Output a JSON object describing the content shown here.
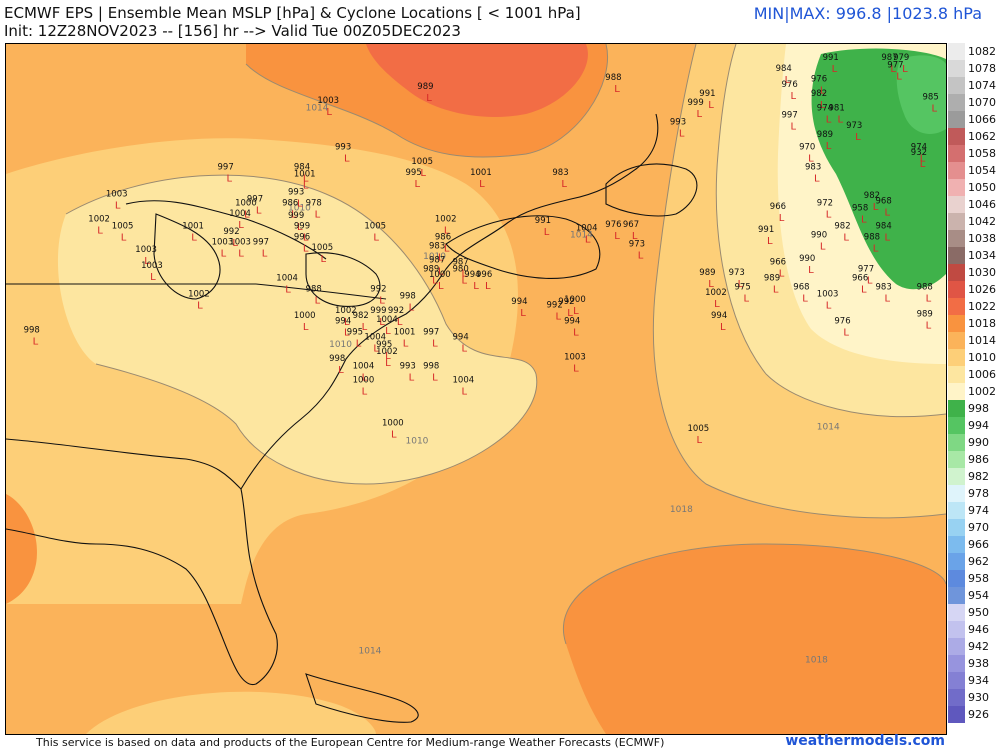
{
  "header": {
    "title_line1": "ECMWF EPS | Ensemble Mean MSLP [hPa] & Cyclone Locations [ < 1001 hPa]",
    "title_line2": "Init: 12Z28NOV2023 -- [156] hr --> Valid Tue 00Z05DEC2023",
    "minmax": "MIN|MAX: 996.8 |1023.8 hPa"
  },
  "footer": {
    "disclaimer": "This service is based on data and products of the European Centre for Medium-range Weather Forecasts (ECMWF)",
    "brand": "weathermodels.com"
  },
  "cyclone_marker": "L",
  "colors": {
    "land_lines": "#111111",
    "cyclone_marker": "#d62828",
    "isobar_line": "#9a8a70",
    "header_accent": "#1f55d6"
  },
  "isobar_labels": [
    {
      "text": "1014",
      "lon": -82.5,
      "lat": 49.8
    },
    {
      "text": "1010",
      "lon": -84.0,
      "lat": 44.2
    },
    {
      "text": "1010",
      "lon": -72.5,
      "lat": 41.5
    },
    {
      "text": "1010",
      "lon": -80.5,
      "lat": 36.6
    },
    {
      "text": "1010",
      "lon": -74.0,
      "lat": 31.2
    },
    {
      "text": "1014",
      "lon": -60.0,
      "lat": 42.7
    },
    {
      "text": "1014",
      "lon": -39.0,
      "lat": 32.0
    },
    {
      "text": "1018",
      "lon": -51.5,
      "lat": 27.4
    },
    {
      "text": "1014",
      "lon": -78.0,
      "lat": 19.5
    },
    {
      "text": "1018",
      "lon": -40.0,
      "lat": 19.0
    }
  ],
  "pressure_values": [
    {
      "text": "1003",
      "lon": -81.5,
      "lat": 50.2
    },
    {
      "text": "989",
      "lon": -73.0,
      "lat": 51.0
    },
    {
      "text": "988",
      "lon": -57.0,
      "lat": 51.5
    },
    {
      "text": "991",
      "lon": -49.0,
      "lat": 50.6
    },
    {
      "text": "999",
      "lon": -50.0,
      "lat": 50.1
    },
    {
      "text": "993",
      "lon": -51.5,
      "lat": 49.0
    },
    {
      "text": "993",
      "lon": -80.0,
      "lat": 47.6
    },
    {
      "text": "1005",
      "lon": -73.5,
      "lat": 46.8
    },
    {
      "text": "995",
      "lon": -74.0,
      "lat": 46.2
    },
    {
      "text": "1001",
      "lon": -68.5,
      "lat": 46.2
    },
    {
      "text": "983",
      "lon": -61.5,
      "lat": 46.2
    },
    {
      "text": "997",
      "lon": -90.0,
      "lat": 46.5
    },
    {
      "text": "984",
      "lon": -83.5,
      "lat": 46.5
    },
    {
      "text": "1001",
      "lon": -83.5,
      "lat": 46.1
    },
    {
      "text": "993",
      "lon": -84.0,
      "lat": 45.1
    },
    {
      "text": "997",
      "lon": -87.5,
      "lat": 44.7
    },
    {
      "text": "1000",
      "lon": -88.5,
      "lat": 44.5
    },
    {
      "text": "986",
      "lon": -84.5,
      "lat": 44.5
    },
    {
      "text": "978",
      "lon": -82.5,
      "lat": 44.5
    },
    {
      "text": "1004",
      "lon": -89.0,
      "lat": 43.9
    },
    {
      "text": "999",
      "lon": -84.0,
      "lat": 43.8
    },
    {
      "text": "992",
      "lon": -89.5,
      "lat": 42.9
    },
    {
      "text": "999",
      "lon": -83.5,
      "lat": 43.2
    },
    {
      "text": "996",
      "lon": -83.5,
      "lat": 42.6
    },
    {
      "text": "1001",
      "lon": -93.0,
      "lat": 43.2
    },
    {
      "text": "1003",
      "lon": -99.5,
      "lat": 45.0
    },
    {
      "text": "1002",
      "lon": -101.0,
      "lat": 43.6
    },
    {
      "text": "1005",
      "lon": -99.0,
      "lat": 43.2
    },
    {
      "text": "1003",
      "lon": -90.5,
      "lat": 42.3
    },
    {
      "text": "1003",
      "lon": -89.0,
      "lat": 42.3
    },
    {
      "text": "997",
      "lon": -87.0,
      "lat": 42.3
    },
    {
      "text": "1003",
      "lon": -97.0,
      "lat": 41.9
    },
    {
      "text": "1003",
      "lon": -96.5,
      "lat": 41.0
    },
    {
      "text": "1005",
      "lon": -82.0,
      "lat": 42.0
    },
    {
      "text": "1005",
      "lon": -77.5,
      "lat": 43.2
    },
    {
      "text": "1002",
      "lon": -71.5,
      "lat": 43.6
    },
    {
      "text": "986",
      "lon": -71.5,
      "lat": 42.6
    },
    {
      "text": "983",
      "lon": -72.0,
      "lat": 42.1
    },
    {
      "text": "987",
      "lon": -72.0,
      "lat": 41.3
    },
    {
      "text": "987",
      "lon": -70.0,
      "lat": 41.2
    },
    {
      "text": "980",
      "lon": -70.0,
      "lat": 40.8
    },
    {
      "text": "994",
      "lon": -69.0,
      "lat": 40.5
    },
    {
      "text": "996",
      "lon": -68.0,
      "lat": 40.5
    },
    {
      "text": "989",
      "lon": -72.5,
      "lat": 40.8
    },
    {
      "text": "1000",
      "lon": -72.0,
      "lat": 40.5
    },
    {
      "text": "991",
      "lon": -63.0,
      "lat": 43.5
    },
    {
      "text": "1004",
      "lon": -59.5,
      "lat": 43.1
    },
    {
      "text": "976",
      "lon": -57.0,
      "lat": 43.3
    },
    {
      "text": "967",
      "lon": -55.5,
      "lat": 43.3
    },
    {
      "text": "973",
      "lon": -55.0,
      "lat": 42.2
    },
    {
      "text": "1004",
      "lon": -85.0,
      "lat": 40.3
    },
    {
      "text": "988",
      "lon": -82.5,
      "lat": 39.7
    },
    {
      "text": "1002",
      "lon": -92.5,
      "lat": 39.4
    },
    {
      "text": "1000",
      "lon": -83.5,
      "lat": 38.2
    },
    {
      "text": "1002",
      "lon": -80.0,
      "lat": 38.5
    },
    {
      "text": "994",
      "lon": -80.0,
      "lat": 37.9
    },
    {
      "text": "992",
      "lon": -77.0,
      "lat": 39.7
    },
    {
      "text": "998",
      "lon": -74.5,
      "lat": 39.3
    },
    {
      "text": "982",
      "lon": -78.5,
      "lat": 38.2
    },
    {
      "text": "999",
      "lon": -77.0,
      "lat": 38.5
    },
    {
      "text": "992",
      "lon": -75.5,
      "lat": 38.5
    },
    {
      "text": "1004",
      "lon": -76.5,
      "lat": 38.0
    },
    {
      "text": "995",
      "lon": -79.0,
      "lat": 37.3
    },
    {
      "text": "1004",
      "lon": -77.5,
      "lat": 37.0
    },
    {
      "text": "995",
      "lon": -76.5,
      "lat": 36.6
    },
    {
      "text": "1002",
      "lon": -76.5,
      "lat": 36.2
    },
    {
      "text": "1001",
      "lon": -75.0,
      "lat": 37.3
    },
    {
      "text": "997",
      "lon": -72.5,
      "lat": 37.3
    },
    {
      "text": "994",
      "lon": -70.0,
      "lat": 37.0
    },
    {
      "text": "998",
      "lon": -80.5,
      "lat": 35.8
    },
    {
      "text": "1004",
      "lon": -78.5,
      "lat": 35.4
    },
    {
      "text": "1000",
      "lon": -78.5,
      "lat": 34.6
    },
    {
      "text": "993",
      "lon": -74.5,
      "lat": 35.4
    },
    {
      "text": "998",
      "lon": -72.5,
      "lat": 35.4
    },
    {
      "text": "1004",
      "lon": -70.0,
      "lat": 34.6
    },
    {
      "text": "1000",
      "lon": -76.0,
      "lat": 32.2
    },
    {
      "text": "998",
      "lon": -106.5,
      "lat": 37.4
    },
    {
      "text": "994",
      "lon": -65.0,
      "lat": 39.0
    },
    {
      "text": "992",
      "lon": -62.0,
      "lat": 38.8
    },
    {
      "text": "992",
      "lon": -61.0,
      "lat": 39.0
    },
    {
      "text": "1000",
      "lon": -60.5,
      "lat": 39.1
    },
    {
      "text": "994",
      "lon": -60.5,
      "lat": 37.9
    },
    {
      "text": "1003",
      "lon": -60.5,
      "lat": 35.9
    },
    {
      "text": "1005",
      "lon": -50.0,
      "lat": 31.9
    },
    {
      "text": "991",
      "lon": -44.0,
      "lat": 43.0
    },
    {
      "text": "989",
      "lon": -49.0,
      "lat": 40.6
    },
    {
      "text": "1002",
      "lon": -48.5,
      "lat": 39.5
    },
    {
      "text": "973",
      "lon": -46.5,
      "lat": 40.6
    },
    {
      "text": "975",
      "lon": -46.0,
      "lat": 39.8
    },
    {
      "text": "994",
      "lon": -48.0,
      "lat": 38.2
    },
    {
      "text": "966",
      "lon": -43.0,
      "lat": 44.3
    },
    {
      "text": "966",
      "lon": -43.0,
      "lat": 41.2
    },
    {
      "text": "989",
      "lon": -43.5,
      "lat": 40.3
    },
    {
      "text": "968",
      "lon": -41.0,
      "lat": 39.8
    },
    {
      "text": "990",
      "lon": -40.5,
      "lat": 41.4
    },
    {
      "text": "990",
      "lon": -39.5,
      "lat": 42.7
    },
    {
      "text": "972",
      "lon": -39.0,
      "lat": 44.5
    },
    {
      "text": "982",
      "lon": -37.5,
      "lat": 43.2
    },
    {
      "text": "958",
      "lon": -36.0,
      "lat": 44.2
    },
    {
      "text": "982",
      "lon": -35.0,
      "lat": 44.9
    },
    {
      "text": "968",
      "lon": -34.0,
      "lat": 44.6
    },
    {
      "text": "984",
      "lon": -34.0,
      "lat": 43.2
    },
    {
      "text": "988",
      "lon": -35.0,
      "lat": 42.6
    },
    {
      "text": "977",
      "lon": -35.5,
      "lat": 40.8
    },
    {
      "text": "966",
      "lon": -36.0,
      "lat": 40.3
    },
    {
      "text": "983",
      "lon": -34.0,
      "lat": 39.8
    },
    {
      "text": "988",
      "lon": -30.5,
      "lat": 39.8
    },
    {
      "text": "1003",
      "lon": -39.0,
      "lat": 39.4
    },
    {
      "text": "976",
      "lon": -37.5,
      "lat": 37.9
    },
    {
      "text": "989",
      "lon": -30.5,
      "lat": 38.3
    },
    {
      "text": "970",
      "lon": -40.5,
      "lat": 47.6
    },
    {
      "text": "983",
      "lon": -40.0,
      "lat": 46.5
    },
    {
      "text": "984",
      "lon": -42.5,
      "lat": 52.0
    },
    {
      "text": "991",
      "lon": -38.5,
      "lat": 52.6
    },
    {
      "text": "976",
      "lon": -42.0,
      "lat": 51.1
    },
    {
      "text": "976",
      "lon": -39.5,
      "lat": 51.4
    },
    {
      "text": "982",
      "lon": -39.5,
      "lat": 50.6
    },
    {
      "text": "997",
      "lon": -42.0,
      "lat": 49.4
    },
    {
      "text": "974",
      "lon": -39.0,
      "lat": 49.8
    },
    {
      "text": "981",
      "lon": -38.0,
      "lat": 49.8
    },
    {
      "text": "973",
      "lon": -36.5,
      "lat": 48.8
    },
    {
      "text": "989",
      "lon": -39.0,
      "lat": 48.3
    },
    {
      "text": "987",
      "lon": -33.5,
      "lat": 52.6
    },
    {
      "text": "979",
      "lon": -32.5,
      "lat": 52.6
    },
    {
      "text": "977",
      "lon": -33.0,
      "lat": 52.2
    },
    {
      "text": "985",
      "lon": -30.0,
      "lat": 50.4
    },
    {
      "text": "974",
      "lon": -31.0,
      "lat": 47.6
    },
    {
      "text": "932",
      "lon": -31.0,
      "lat": 47.3
    }
  ],
  "legend": {
    "labels": [
      "1082",
      "1078",
      "1074",
      "1070",
      "1066",
      "1062",
      "1058",
      "1054",
      "1050",
      "1046",
      "1042",
      "1038",
      "1034",
      "1030",
      "1026",
      "1022",
      "1018",
      "1014",
      "1010",
      "1006",
      "1002",
      "998",
      "994",
      "990",
      "986",
      "982",
      "978",
      "974",
      "970",
      "966",
      "962",
      "958",
      "954",
      "950",
      "946",
      "942",
      "938",
      "934",
      "930",
      "926"
    ],
    "colors": [
      "#ececec",
      "#d9d9d9",
      "#c4c4c4",
      "#aeaeae",
      "#9b9b9b",
      "#c05a5a",
      "#d46f6f",
      "#e48f8f",
      "#f0b1b1",
      "#e9d2cf",
      "#cbb3ad",
      "#a88d86",
      "#8a6b66",
      "#c04a42",
      "#e05545",
      "#f26d45",
      "#f9933f",
      "#fbb35a",
      "#fdcf78",
      "#fde6a0",
      "#fff4c8",
      "#3fb24a",
      "#55c562",
      "#7fd884",
      "#a8e8a6",
      "#d0f3ce",
      "#dff4fb",
      "#bde6f6",
      "#98d2f2",
      "#7cbbee",
      "#6aa3e8",
      "#5d8ade",
      "#6f95db",
      "#d6d6f4",
      "#c2c2ee",
      "#acabe6",
      "#9794de",
      "#8480d4",
      "#716cc9",
      "#5f58be"
    ]
  }
}
